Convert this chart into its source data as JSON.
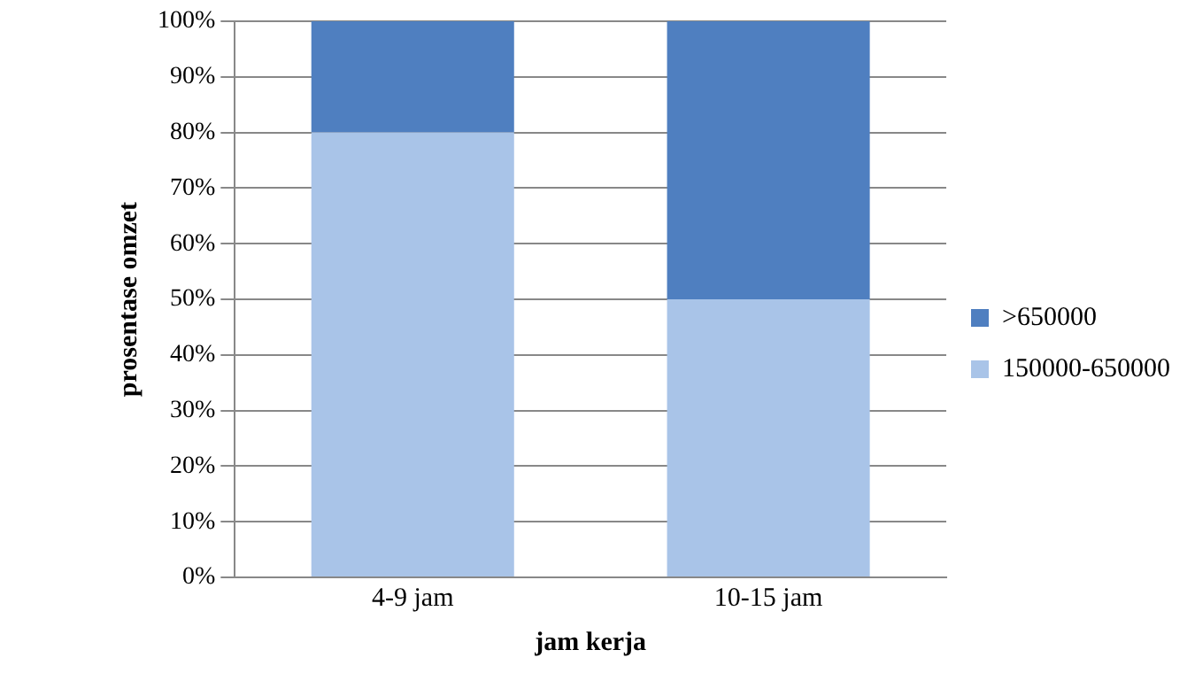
{
  "chart_data": {
    "type": "bar",
    "stacked": true,
    "xlabel": "jam kerja",
    "ylabel": "prosentase omzet",
    "categories": [
      "4-9 jam",
      "10-15 jam"
    ],
    "series": [
      {
        "name": "150000-650000",
        "color": "#a9c4e8",
        "values": [
          80,
          50
        ]
      },
      {
        "name": ">650000",
        "color": "#4f7fc0",
        "values": [
          20,
          50
        ]
      }
    ],
    "ylim": [
      0,
      100
    ],
    "yticks": [
      {
        "value": 0,
        "label": "0%"
      },
      {
        "value": 10,
        "label": "10%"
      },
      {
        "value": 20,
        "label": "20%"
      },
      {
        "value": 30,
        "label": "30%"
      },
      {
        "value": 40,
        "label": "40%"
      },
      {
        "value": 50,
        "label": "50%"
      },
      {
        "value": 60,
        "label": "60%"
      },
      {
        "value": 70,
        "label": "70%"
      },
      {
        "value": 80,
        "label": "80%"
      },
      {
        "value": 90,
        "label": "90%"
      },
      {
        "value": 100,
        "label": "100%"
      }
    ],
    "grid": "y",
    "legend": "right"
  }
}
